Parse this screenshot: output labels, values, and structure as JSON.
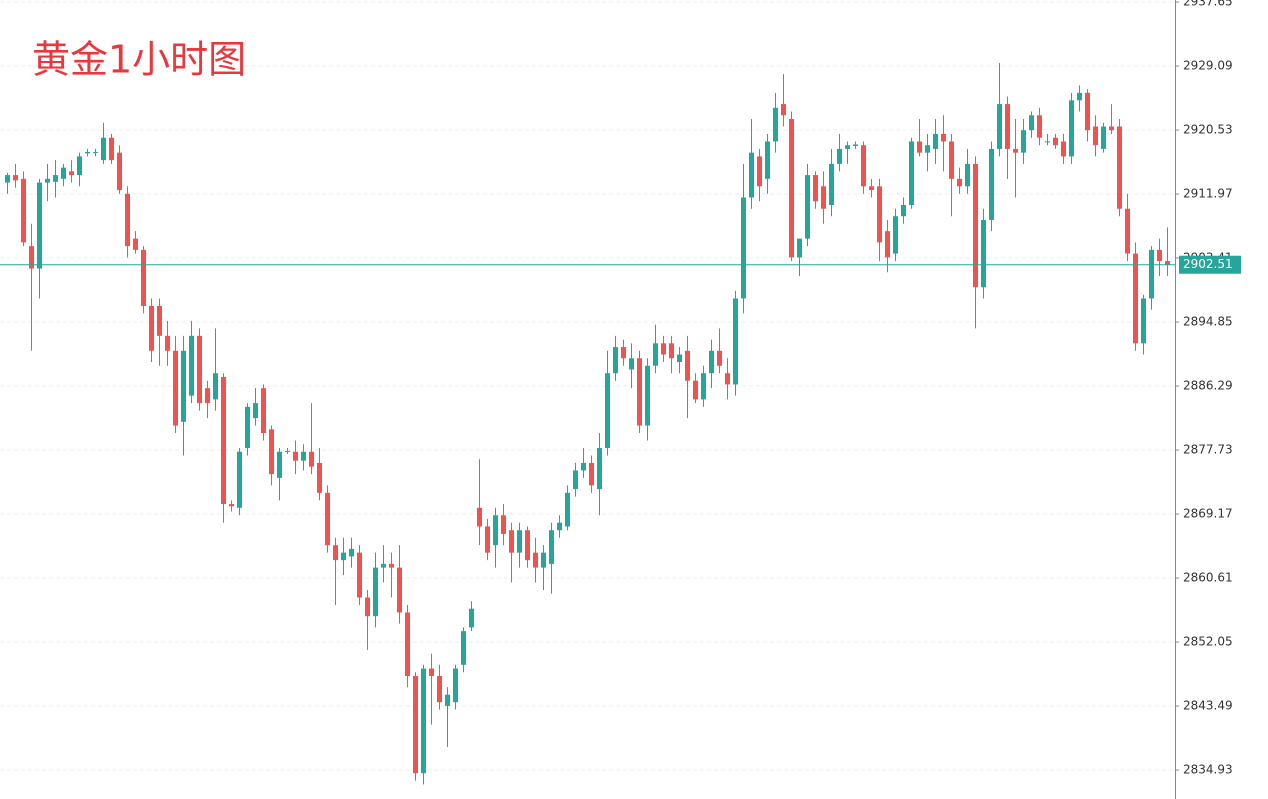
{
  "chart_data": {
    "type": "candlestick",
    "title": "黄金1小时图",
    "up_color": "#26a69a",
    "down_color": "#ef5350",
    "grid": true,
    "ylim": [
      2831.05,
      2937.92
    ],
    "yticks": [
      2834.93,
      2843.49,
      2852.05,
      2860.61,
      2869.17,
      2877.73,
      2886.29,
      2894.85,
      2903.41,
      2911.97,
      2920.53,
      2929.09,
      2937.65
    ],
    "open": [
      2913.5,
      2914.5,
      2914,
      2905,
      2902,
      2913.5,
      2913.6,
      2914,
      2915,
      2914.5,
      2917.4,
      2917.5,
      2916.5,
      2919.5,
      2917.5,
      2912,
      2906,
      2904.5,
      2897,
      2897,
      2893,
      2891,
      2881.5,
      2885,
      2893,
      2886,
      2884.5,
      2887.5,
      2870.5,
      2870,
      2878,
      2882,
      2886,
      2880.5,
      2874,
      2877.5,
      2877.5,
      2876.3,
      2877.5,
      2876,
      2872,
      2865,
      2863,
      2863.5,
      2864,
      2858,
      2855.5,
      2862,
      2862.5,
      2862,
      2856,
      2847.5,
      2834.5,
      2848.5,
      2847.5,
      2843.5,
      2844,
      2849,
      2854,
      2870,
      2867.5,
      2865,
      2869,
      2867,
      2864,
      2867,
      2864,
      2862,
      2862.5,
      2867,
      2867.5,
      2872.5,
      2875,
      2876,
      2872.5,
      2878,
      2888,
      2891.5,
      2888.5,
      2890,
      2881,
      2889,
      2892,
      2892,
      2889.5,
      2891,
      2887,
      2884.5,
      2888,
      2891,
      2888,
      2886.5,
      2898,
      2911.5,
      2917,
      2914,
      2919,
      2924,
      2922,
      2903.5,
      2906,
      2914.5,
      2913,
      2910.5,
      2916,
      2918,
      2918.4,
      2918.5,
      2913,
      2913,
      2907,
      2904,
      2909,
      2910.5,
      2919,
      2917.5,
      2918,
      2920,
      2919,
      2914,
      2913,
      2916,
      2899.5,
      2908.5,
      2918,
      2924,
      2918,
      2917.5,
      2920.5,
      2922.5,
      2919,
      2919.5,
      2919,
      2917,
      2924.5,
      2925.5,
      2921,
      2918,
      2921,
      2921,
      2910,
      2904,
      2892,
      2898,
      2904.5,
      2903
    ],
    "high": [
      2914.8,
      2916,
      2915,
      2908,
      2914,
      2916,
      2916.5,
      2916,
      2916.5,
      2917.5,
      2918,
      2918,
      2921.5,
      2920,
      2918.5,
      2913,
      2907,
      2905,
      2898,
      2898,
      2895,
      2893,
      2893,
      2895,
      2894,
      2887,
      2894,
      2888,
      2871,
      2878,
      2884,
      2886,
      2886.5,
      2881,
      2878,
      2878,
      2879,
      2878.5,
      2884,
      2878,
      2873,
      2866,
      2866,
      2866,
      2865,
      2859,
      2864,
      2865,
      2864,
      2865,
      2857,
      2848,
      2849,
      2850.5,
      2849,
      2846,
      2849,
      2854,
      2857.5,
      2876.5,
      2868.5,
      2870,
      2870.5,
      2868,
      2868,
      2867.5,
      2866,
      2865,
      2868,
      2869,
      2873,
      2876,
      2878,
      2877,
      2880,
      2891,
      2893,
      2892.5,
      2892,
      2891,
      2890,
      2894.5,
      2893,
      2893,
      2891.5,
      2893,
      2888,
      2889,
      2892.5,
      2894,
      2890,
      2899,
      2916,
      2922,
      2918,
      2920,
      2925.5,
      2928,
      2923,
      2906,
      2916,
      2915,
      2915,
      2918,
      2920,
      2919,
      2919,
      2919,
      2914,
      2914,
      2908.5,
      2910,
      2911.5,
      2919.5,
      2922,
      2920,
      2922,
      2922.5,
      2920,
      2915.5,
      2918,
      2917,
      2910,
      2919,
      2929.5,
      2925,
      2922,
      2922,
      2923,
      2923.5,
      2920,
      2920,
      2920,
      2925.5,
      2926.5,
      2926,
      2922.5,
      2921.5,
      2924,
      2922,
      2912,
      2905.5,
      2898.5,
      2905,
      2906,
      2907.5
    ],
    "low": [
      2912,
      2912.8,
      2905,
      2891,
      2898,
      2911,
      2911.5,
      2913,
      2913.5,
      2913,
      2917,
      2917,
      2916,
      2916,
      2912,
      2903.5,
      2904,
      2896,
      2889.5,
      2889,
      2889,
      2880,
      2877,
      2884,
      2883,
      2882,
      2883,
      2868,
      2869.5,
      2869,
      2877,
      2881,
      2879,
      2873,
      2871,
      2877.2,
      2874.5,
      2875,
      2874.5,
      2871,
      2864,
      2857,
      2861,
      2862,
      2857,
      2851,
      2854,
      2860,
      2858,
      2854.5,
      2846,
      2833.5,
      2833,
      2841,
      2843,
      2838,
      2843,
      2848,
      2853.5,
      2865,
      2863,
      2862,
      2865,
      2860,
      2862,
      2862,
      2860,
      2859,
      2858.5,
      2866,
      2867,
      2871.5,
      2874,
      2872,
      2869,
      2877,
      2887,
      2889,
      2886,
      2880,
      2879,
      2888,
      2889.5,
      2888,
      2888,
      2882,
      2884,
      2883.5,
      2886,
      2888,
      2884.5,
      2885,
      2896,
      2910,
      2911,
      2912,
      2917.5,
      2921,
      2903,
      2901,
      2905,
      2910,
      2908,
      2909,
      2915,
      2916,
      2918,
      2912,
      2911.5,
      2903,
      2901.5,
      2903,
      2908,
      2910,
      2917,
      2915,
      2916,
      2915,
      2909,
      2912,
      2912,
      2894,
      2898,
      2907,
      2917,
      2914,
      2911.5,
      2916,
      2919.5,
      2918.5,
      2918.5,
      2918,
      2916,
      2916,
      2923,
      2919,
      2917,
      2917.5,
      2920,
      2909,
      2903,
      2891,
      2890.5,
      2896.5,
      2901,
      2901
    ],
    "close": [
      2914.5,
      2913.8,
      2905.5,
      2902,
      2913.5,
      2914,
      2914.5,
      2915.5,
      2914.5,
      2917,
      2917.6,
      2917.6,
      2919.5,
      2916.5,
      2912.5,
      2905,
      2904.5,
      2897,
      2891,
      2893,
      2891,
      2881,
      2891,
      2893,
      2884,
      2884,
      2888,
      2870.5,
      2870.2,
      2877.5,
      2883.5,
      2884,
      2880,
      2874.5,
      2877.5,
      2877.6,
      2876.3,
      2877.5,
      2875.5,
      2872,
      2865,
      2863,
      2864,
      2864.5,
      2858,
      2855.5,
      2862,
      2862.5,
      2862,
      2856,
      2847.5,
      2834.5,
      2848.5,
      2847.5,
      2844,
      2845,
      2848.5,
      2853.5,
      2856.5,
      2867.5,
      2864,
      2869,
      2866.5,
      2864,
      2867,
      2863,
      2862,
      2864,
      2867,
      2868,
      2872,
      2875,
      2876,
      2873,
      2878,
      2888,
      2891.5,
      2890,
      2890,
      2881,
      2889,
      2892,
      2890.5,
      2890,
      2890.5,
      2887,
      2884.5,
      2888,
      2891,
      2889,
      2886.5,
      2898,
      2911.5,
      2917.5,
      2913,
      2919,
      2923.5,
      2922.5,
      2903.5,
      2906,
      2914.5,
      2911,
      2910,
      2916,
      2918,
      2918.5,
      2918.6,
      2913,
      2912.5,
      2905.5,
      2903.5,
      2909,
      2910.5,
      2919,
      2917.5,
      2918.5,
      2920,
      2919,
      2914,
      2913,
      2916,
      2899.5,
      2908.5,
      2918,
      2924,
      2918,
      2917.5,
      2920.5,
      2922.5,
      2919.5,
      2919,
      2918.5,
      2917,
      2924.5,
      2925.5,
      2920.5,
      2918.5,
      2921,
      2920.5,
      2910,
      2904,
      2892,
      2898,
      2904.5,
      2903,
      2902.51
    ]
  }
}
